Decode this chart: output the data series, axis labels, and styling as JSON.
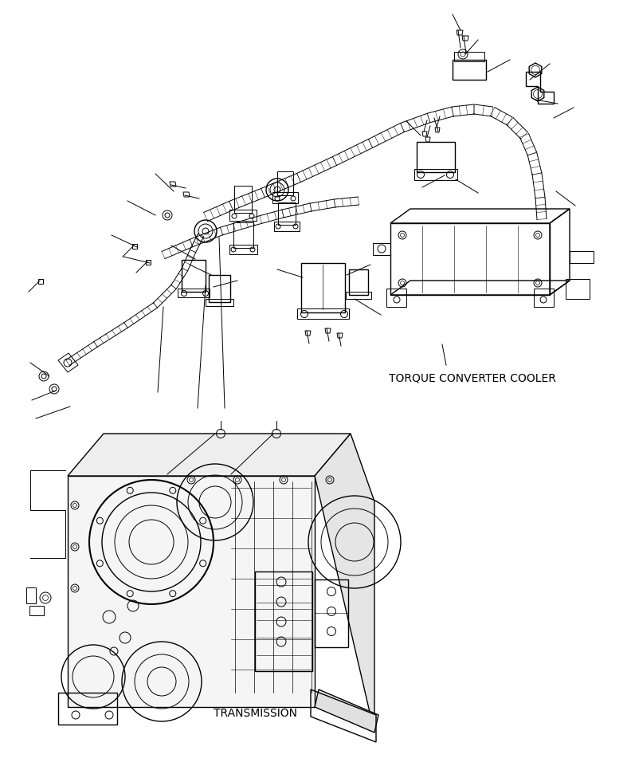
{
  "background_color": "#ffffff",
  "line_color": "#000000",
  "label_torque_converter_cooler": "TORQUE CONVERTER COOLER",
  "label_transmission": "TRANSMISSION",
  "fig_width": 7.92,
  "fig_height": 9.61,
  "dpi": 100
}
